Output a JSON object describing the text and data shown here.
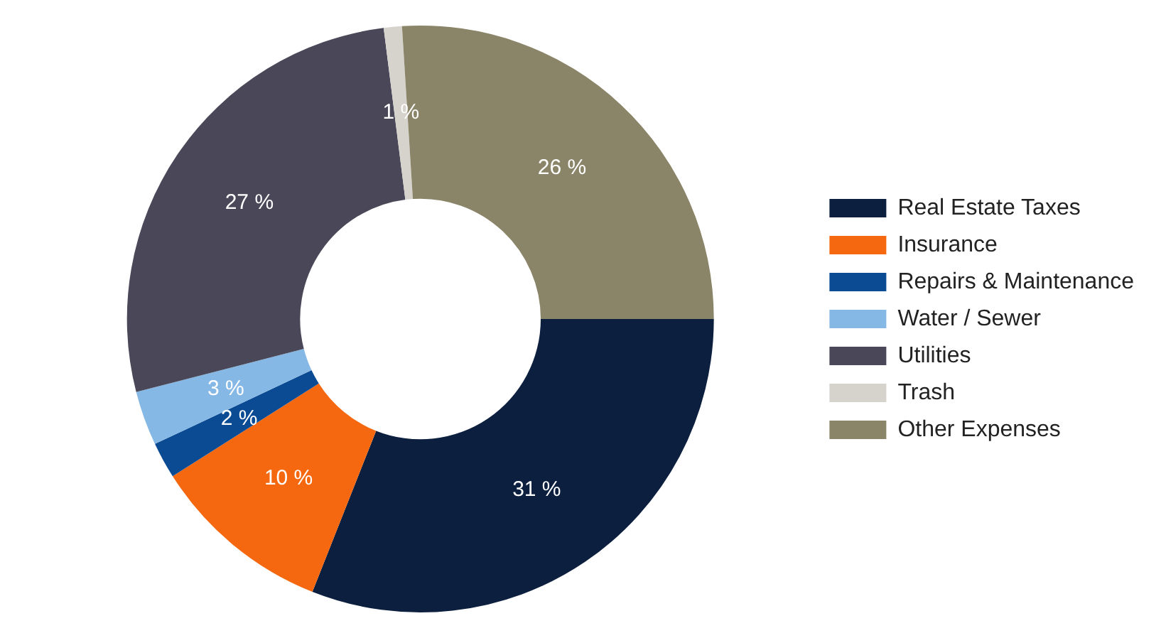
{
  "chart_data": {
    "type": "donut",
    "categories": [
      "Real Estate Taxes",
      "Insurance",
      "Repairs & Maintenance",
      "Water / Sewer",
      "Utilities",
      "Trash",
      "Other Expenses"
    ],
    "values": [
      31,
      10,
      2,
      3,
      27,
      1,
      26
    ],
    "value_labels": [
      "31 %",
      "10 %",
      "2 %",
      "3 %",
      "27 %",
      "1 %",
      "26 %"
    ],
    "colors": [
      "#0c1f3f",
      "#f5680f",
      "#0b4b94",
      "#86b8e6",
      "#4a4858",
      "#d6d2cc",
      "#8a8468"
    ],
    "legend": "right"
  }
}
